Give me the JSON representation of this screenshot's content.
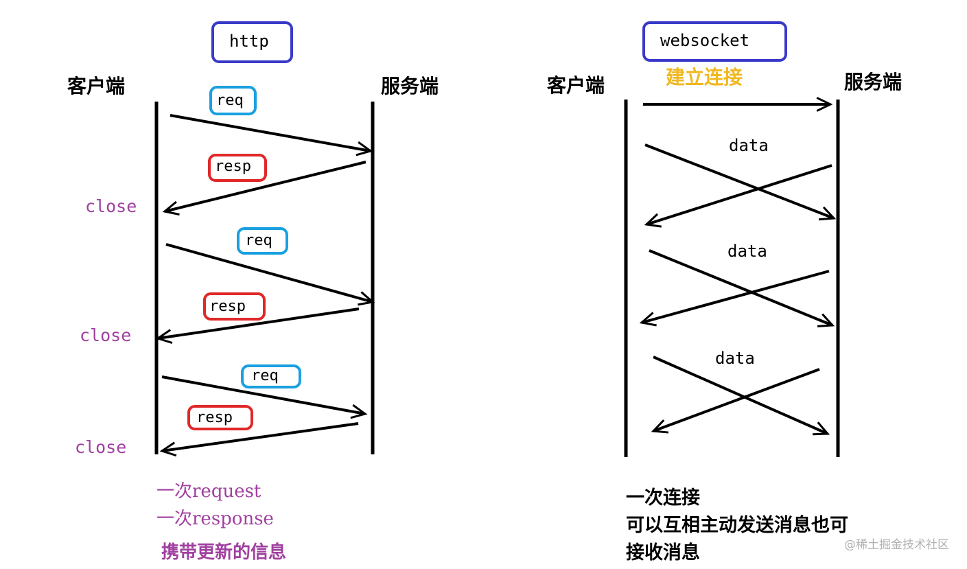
{
  "http": {
    "title": "http",
    "client": "客户端",
    "server": "服务端",
    "req": "req",
    "resp": "resp",
    "close": "close",
    "notes": [
      "一次request",
      "一次response",
      "携带更新的信息"
    ]
  },
  "websocket": {
    "title": "websocket",
    "client": "客户端",
    "server": "服务端",
    "connect": "建立连接",
    "data": "data",
    "notes": [
      "一次连接",
      "可以互相主动发送消息也可",
      "接收消息"
    ]
  },
  "watermark": "@稀土掘金技术社区",
  "colors": {
    "title_box": "#3a3ac8",
    "req_box": "#1aa0e0",
    "resp_box": "#e02828",
    "close": "#a040a0",
    "connect": "#f0b820",
    "line": "#000000"
  }
}
